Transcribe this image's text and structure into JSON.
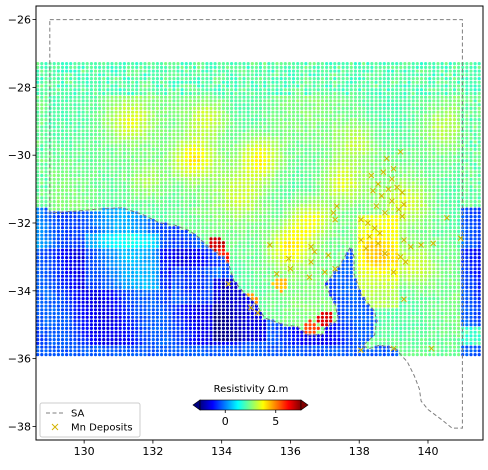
{
  "chart_data": {
    "type": "scatter",
    "title": "",
    "xlabel": "",
    "ylabel": "",
    "xlim": [
      128.6,
      141.6
    ],
    "ylim": [
      -38.4,
      -25.6
    ],
    "x_ticks": [
      130,
      132,
      134,
      136,
      138,
      140
    ],
    "y_ticks": [
      -26,
      -28,
      -30,
      -32,
      -34,
      -36,
      -38
    ],
    "x_tick_labels": [
      "130",
      "132",
      "134",
      "136",
      "138",
      "140"
    ],
    "y_tick_labels": [
      "−26",
      "−28",
      "−30",
      "−32",
      "−34",
      "−36",
      "−38"
    ],
    "grid": false,
    "legend_position": "lower-left",
    "legend": [
      {
        "label": "SA",
        "marker": "dashed-line",
        "color": "#808080"
      },
      {
        "label": "Mn Deposits",
        "marker": "x",
        "color": "#d4b400"
      }
    ],
    "colorbar": {
      "title": "Resistivity Ω.m",
      "ticks": [
        0,
        5
      ],
      "tick_labels": [
        "0",
        "5"
      ],
      "range": [
        -2.5,
        7.5
      ],
      "colormap": "jet",
      "extend": "both",
      "position": "lower-center"
    },
    "sa_boundary": [
      [
        129.0,
        -26.0
      ],
      [
        141.0,
        -26.0
      ],
      [
        141.0,
        -38.05
      ],
      [
        140.7,
        -38.05
      ],
      [
        140.4,
        -37.8
      ],
      [
        140.0,
        -37.5
      ],
      [
        139.8,
        -37.25
      ],
      [
        139.75,
        -36.9
      ],
      [
        139.6,
        -36.5
      ],
      [
        139.4,
        -36.1
      ],
      [
        139.05,
        -35.7
      ],
      [
        138.6,
        -35.6
      ],
      [
        138.3,
        -35.7
      ],
      [
        138.1,
        -35.62
      ],
      [
        138.45,
        -35.3
      ],
      [
        138.5,
        -34.9
      ],
      [
        138.45,
        -34.6
      ],
      [
        138.2,
        -34.3
      ],
      [
        138.05,
        -34.1
      ],
      [
        137.85,
        -33.5
      ],
      [
        137.85,
        -33.0
      ],
      [
        137.75,
        -32.7
      ],
      [
        137.4,
        -33.3
      ],
      [
        137.0,
        -33.8
      ],
      [
        137.3,
        -34.4
      ],
      [
        137.4,
        -34.85
      ],
      [
        137.0,
        -35.1
      ],
      [
        136.9,
        -35.3
      ],
      [
        136.5,
        -35.3
      ],
      [
        136.2,
        -35.05
      ],
      [
        135.8,
        -35.0
      ],
      [
        135.25,
        -34.8
      ],
      [
        135.0,
        -34.4
      ],
      [
        134.6,
        -34.0
      ],
      [
        134.35,
        -33.7
      ],
      [
        134.2,
        -33.2
      ],
      [
        134.05,
        -33.0
      ],
      [
        133.6,
        -32.7
      ],
      [
        133.25,
        -32.35
      ],
      [
        133.0,
        -32.2
      ],
      [
        132.6,
        -32.05
      ],
      [
        132.2,
        -32.0
      ],
      [
        131.7,
        -31.75
      ],
      [
        131.1,
        -31.55
      ],
      [
        130.3,
        -31.6
      ],
      [
        129.8,
        -31.65
      ],
      [
        129.0,
        -31.7
      ],
      [
        129.0,
        -26.0
      ]
    ],
    "mn_deposits": [
      [
        139.2,
        -29.9
      ],
      [
        138.8,
        -30.1
      ],
      [
        139.0,
        -30.4
      ],
      [
        138.7,
        -30.5
      ],
      [
        138.95,
        -30.7
      ],
      [
        138.35,
        -30.6
      ],
      [
        138.55,
        -30.85
      ],
      [
        139.1,
        -30.95
      ],
      [
        138.85,
        -31.0
      ],
      [
        138.4,
        -31.05
      ],
      [
        139.25,
        -31.1
      ],
      [
        138.65,
        -31.2
      ],
      [
        138.95,
        -31.35
      ],
      [
        139.3,
        -31.45
      ],
      [
        139.15,
        -31.6
      ],
      [
        138.75,
        -31.7
      ],
      [
        139.25,
        -31.8
      ],
      [
        138.5,
        -31.5
      ],
      [
        138.05,
        -31.9
      ],
      [
        138.25,
        -32.0
      ],
      [
        138.45,
        -32.15
      ],
      [
        138.6,
        -32.3
      ],
      [
        138.3,
        -32.4
      ],
      [
        138.05,
        -32.5
      ],
      [
        138.55,
        -32.6
      ],
      [
        138.2,
        -32.75
      ],
      [
        138.75,
        -32.9
      ],
      [
        139.3,
        -32.5
      ],
      [
        139.5,
        -32.7
      ],
      [
        139.8,
        -32.65
      ],
      [
        140.15,
        -32.6
      ],
      [
        139.2,
        -33.0
      ],
      [
        139.35,
        -33.15
      ],
      [
        139.0,
        -33.45
      ],
      [
        137.35,
        -31.5
      ],
      [
        137.25,
        -31.7
      ],
      [
        137.3,
        -31.9
      ],
      [
        136.6,
        -32.7
      ],
      [
        136.7,
        -32.85
      ],
      [
        135.4,
        -32.65
      ],
      [
        135.95,
        -33.05
      ],
      [
        136.0,
        -33.35
      ],
      [
        136.6,
        -33.15
      ],
      [
        137.0,
        -33.45
      ],
      [
        136.55,
        -33.6
      ],
      [
        137.3,
        -33.35
      ],
      [
        134.2,
        -33.8
      ],
      [
        134.85,
        -34.5
      ],
      [
        135.05,
        -34.65
      ],
      [
        135.6,
        -33.5
      ],
      [
        140.95,
        -32.45
      ],
      [
        139.3,
        -34.25
      ],
      [
        138.05,
        -35.75
      ],
      [
        139.0,
        -35.7
      ],
      [
        140.1,
        -35.7
      ],
      [
        137.1,
        -32.95
      ],
      [
        140.55,
        -31.85
      ]
    ]
  }
}
